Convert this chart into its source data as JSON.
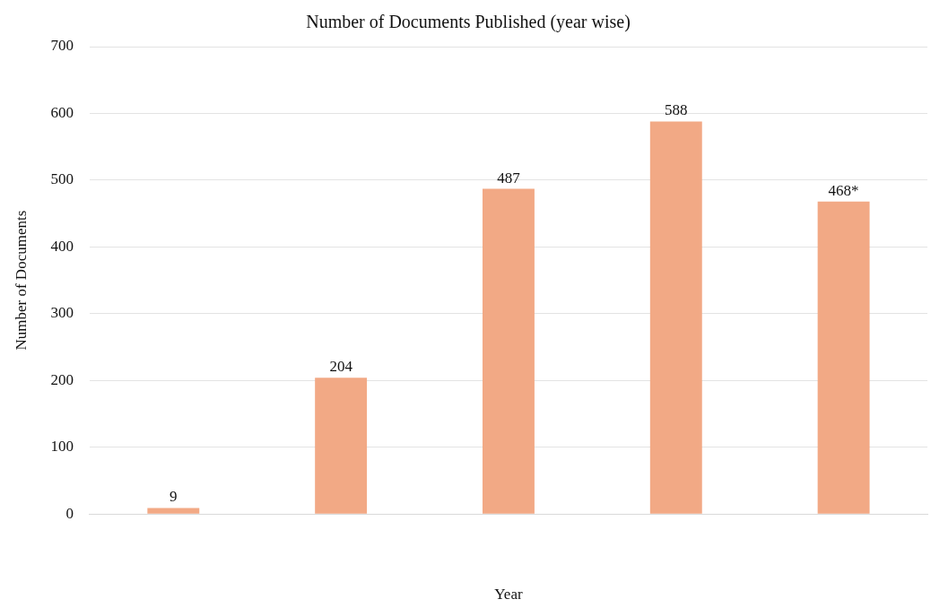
{
  "chart_data": {
    "type": "bar",
    "title": "Number of Documents Published (year wise)",
    "xlabel": "Year",
    "ylabel": "Number of Documents",
    "categories": [
      null,
      null,
      null,
      null,
      null
    ],
    "values": [
      9,
      204,
      487,
      588,
      468
    ],
    "value_labels": [
      "9",
      "204",
      "487",
      "588",
      "468*"
    ],
    "color": "#f2a985",
    "ylim": [
      0,
      700
    ],
    "yticks": [
      0,
      100,
      200,
      300,
      400,
      500,
      600,
      700
    ],
    "grid": "y",
    "legend": false
  }
}
